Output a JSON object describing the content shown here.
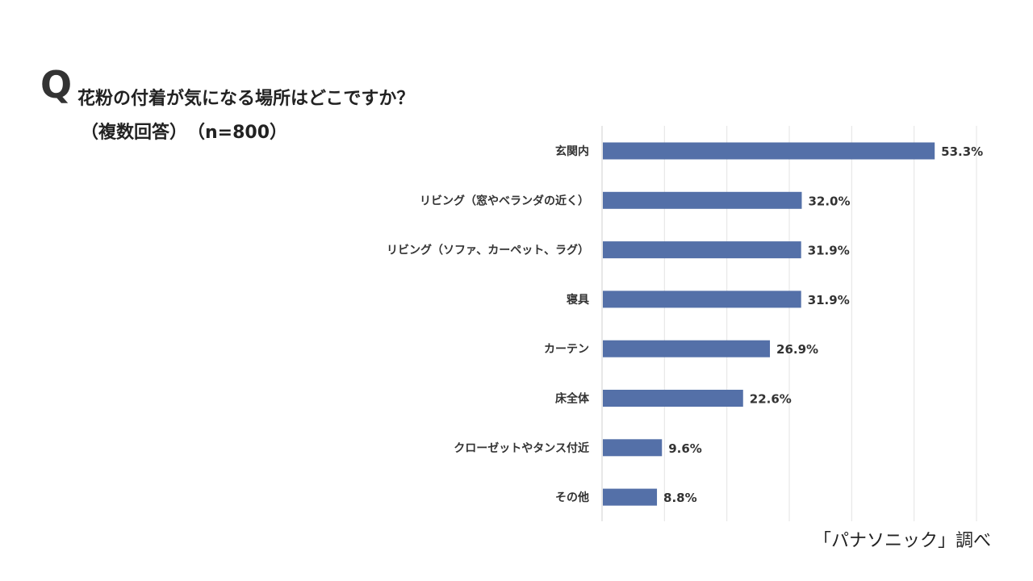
{
  "header": {
    "q_mark": "Q",
    "question": "花粉の付着が気になる場所はどこですか？",
    "subtitle": "（複数回答）　（n=800）"
  },
  "footer": {
    "source": "「パナソニック」調べ"
  },
  "chart_data": {
    "type": "bar",
    "orientation": "horizontal",
    "categories": [
      "玄関内",
      "リビング（窓やベランダの近く）",
      "リビング（ソファ、カーペット、ラグ）",
      "寝具",
      "カーテン",
      "床全体",
      "クローゼットやタンス付近",
      "その他"
    ],
    "values": [
      53.3,
      32.0,
      31.9,
      31.9,
      26.9,
      22.6,
      9.6,
      8.8
    ],
    "value_labels": [
      "53.3%",
      "32.0%",
      "31.9%",
      "31.9%",
      "26.9%",
      "22.6%",
      "9.6%",
      "8.8%"
    ],
    "unit": "%",
    "xlim": [
      0,
      60
    ],
    "gridlines": [
      0,
      10,
      20,
      30,
      40,
      50,
      60
    ],
    "grid": true,
    "legend": "none",
    "bar_color": "#5470a8",
    "grid_color": "#e3e3e3"
  }
}
